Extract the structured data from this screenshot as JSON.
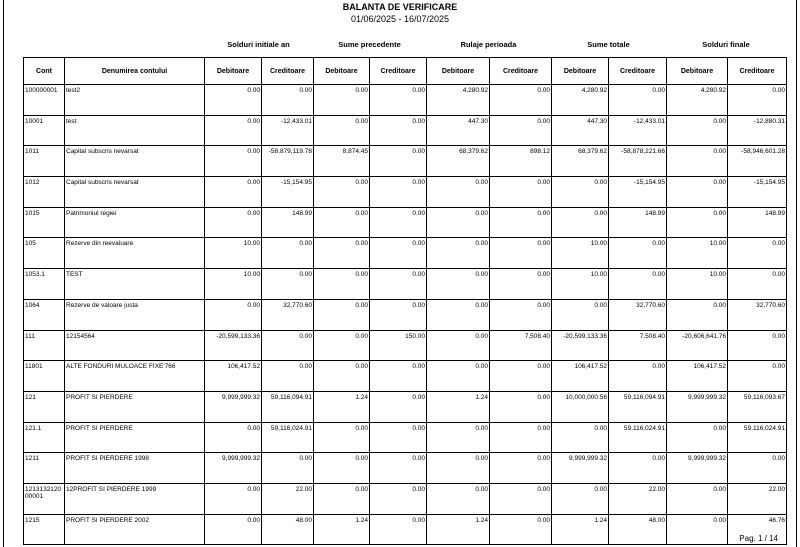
{
  "header": {
    "title": "BALANTA DE VERIFICARE",
    "period": "01/06/2025 - 16/07/2025"
  },
  "table": {
    "groups": [
      "Solduri initiale an",
      "Sume precedente",
      "Rulaje perioada",
      "Sume totale",
      "Solduri finale"
    ],
    "columns": [
      "Cont",
      "Denumirea contului",
      "Debitoare",
      "Creditoare",
      "Debitoare",
      "Creditoare",
      "Debitoare",
      "Creditoare",
      "Debitoare",
      "Creditoare",
      "Debitoare",
      "Creditoare"
    ],
    "rows": [
      [
        "100000001",
        "test2",
        "0.00",
        "0.00",
        "0.00",
        "0.00",
        "4,280.92",
        "0.00",
        "4,280.92",
        "0.00",
        "4,280.92",
        "0.00"
      ],
      [
        "10001",
        "test",
        "0.00",
        "-12,433.01",
        "0.00",
        "0.00",
        "447.30",
        "0.00",
        "447.30",
        "-12,433.01",
        "0.00",
        "-12,880.31"
      ],
      [
        "1011",
        "Capital subscris nevarsat",
        "0.00",
        "-58,879,119.78",
        "8,874.45",
        "0.00",
        "68,379.62",
        "898.12",
        "68,379.62",
        "-58,878,221.66",
        "0.00",
        "-58,946,601.28"
      ],
      [
        "1012",
        "Capital subscris nevarsat",
        "0.00",
        "-15,154.95",
        "0.00",
        "0.00",
        "0.00",
        "0.00",
        "0.00",
        "-15,154.95",
        "0.00",
        "-15,154.95"
      ],
      [
        "1015",
        "Patrimoniul regiei",
        "0.00",
        "148.99",
        "0.00",
        "0.00",
        "0.00",
        "0.00",
        "0.00",
        "148.99",
        "0.00",
        "148.99"
      ],
      [
        "105",
        "Rezerve din reevaluare",
        "10.00",
        "0.00",
        "0.00",
        "0.00",
        "0.00",
        "0.00",
        "10.00",
        "0.00",
        "10.00",
        "0.00"
      ],
      [
        "1053.1",
        "TEST",
        "10.00",
        "0.00",
        "0.00",
        "0.00",
        "0.00",
        "0.00",
        "10.00",
        "0.00",
        "10.00",
        "0.00"
      ],
      [
        "1064",
        "Rezerve de valoare justa",
        "0.00",
        "32,770.60",
        "0.00",
        "0.00",
        "0.00",
        "0.00",
        "0.00",
        "32,770.60",
        "0.00",
        "32,770.60"
      ],
      [
        "111",
        "12154564",
        "-20,599,133.36",
        "0.00",
        "0.00",
        "150.00",
        "0.00",
        "7,508.40",
        "-20,599,133.36",
        "7,508.40",
        "-20,606,641.76",
        "0.00"
      ],
      [
        "11801",
        "ALTE FONDURI MULOACE FIXE'766",
        "106,417.52",
        "0.00",
        "0.00",
        "0.00",
        "0.00",
        "0.00",
        "106,417.52",
        "0.00",
        "106,417.52",
        "0.00"
      ],
      [
        "121",
        "PROFIT SI PIERDERE",
        "9,999,999.32",
        "59,116,094.91",
        "1.24",
        "0.00",
        "1.24",
        "0.00",
        "10,000,000.56",
        "59,116,094.91",
        "9,999,999.32",
        "59,116,093.67"
      ],
      [
        "121.1",
        "PROFIT SI PIERDERE",
        "0.00",
        "59,116,024.91",
        "0.00",
        "0.00",
        "0.00",
        "0.00",
        "0.00",
        "59,116,024.91",
        "0.00",
        "59,116,024.91"
      ],
      [
        "1211",
        "PROFIT SI PIERDERE 1998",
        "9,999,999.32",
        "0.00",
        "0.00",
        "0.00",
        "0.00",
        "0.00",
        "9,999,999.32",
        "0.00",
        "9,999,999.32",
        "0.00"
      ],
      [
        "121313212000001",
        "12PROFIT SI PIERDERE 1999",
        "0.00",
        "22.00",
        "0.00",
        "0.00",
        "0.00",
        "0.00",
        "0.00",
        "22.00",
        "0.00",
        "22.00"
      ],
      [
        "1215",
        "PROFIT SI PIERDERE 2002",
        "0.00",
        "48.00",
        "1.24",
        "0.00",
        "1.24",
        "0.00",
        "1.24",
        "48.00",
        "0.00",
        "46.76"
      ]
    ]
  },
  "footer": {
    "page": "Pag. 1 / 14"
  }
}
